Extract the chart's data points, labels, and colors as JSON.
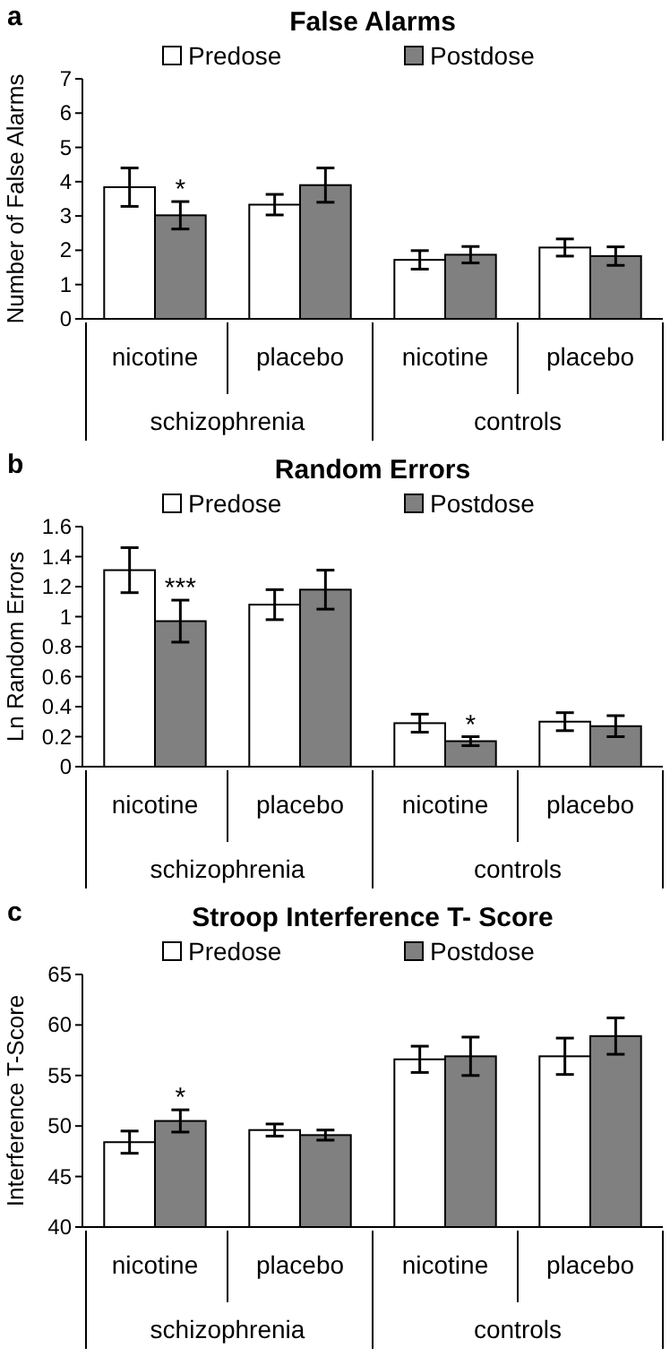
{
  "chart_data": [
    {
      "type": "bar",
      "title": "False Alarms",
      "ylabel": "Number of False Alarms",
      "categories": [
        "nicotine",
        "placebo",
        "nicotine",
        "placebo"
      ],
      "ylim": [
        0,
        7
      ],
      "yticks": [
        0,
        1,
        2,
        3,
        4,
        5,
        6,
        7
      ],
      "legend": "top",
      "grid": false,
      "series": [
        {
          "name": "Predose",
          "color": "#ffffff",
          "values": [
            3.84,
            3.33,
            1.72,
            2.08
          ],
          "errors": [
            0.56,
            0.3,
            0.27,
            0.25
          ]
        },
        {
          "name": "Postdose",
          "color": "#808080",
          "values": [
            3.02,
            3.9,
            1.87,
            1.83
          ],
          "errors": [
            0.4,
            0.5,
            0.24,
            0.27
          ],
          "value_labels": [
            "*",
            null,
            null,
            null
          ]
        }
      ],
      "annotations": [
        "a",
        "schizophrenia",
        "controls"
      ]
    },
    {
      "type": "bar",
      "title": "Random Errors",
      "ylabel": "Ln Random Errors",
      "categories": [
        "nicotine",
        "placebo",
        "nicotine",
        "placebo"
      ],
      "ylim": [
        0,
        1.6
      ],
      "yticks": [
        0,
        0.2,
        0.4,
        0.6,
        0.8,
        1,
        1.2,
        1.4,
        1.6
      ],
      "legend": "top",
      "grid": false,
      "series": [
        {
          "name": "Predose",
          "color": "#ffffff",
          "values": [
            1.31,
            1.08,
            0.29,
            0.3
          ],
          "errors": [
            0.15,
            0.1,
            0.06,
            0.06
          ]
        },
        {
          "name": "Postdose",
          "color": "#808080",
          "values": [
            0.97,
            1.18,
            0.17,
            0.27
          ],
          "errors": [
            0.14,
            0.13,
            0.03,
            0.07
          ],
          "value_labels": [
            "***",
            null,
            "*",
            null
          ]
        }
      ],
      "annotations": [
        "b",
        "schizophrenia",
        "controls"
      ]
    },
    {
      "type": "bar",
      "title": "Stroop Interference T- Score",
      "ylabel": "Interference T-Score",
      "categories": [
        "nicotine",
        "placebo",
        "nicotine",
        "placebo"
      ],
      "ylim": [
        40,
        65
      ],
      "yticks": [
        40,
        45,
        50,
        55,
        60,
        65
      ],
      "legend": "top",
      "grid": false,
      "series": [
        {
          "name": "Predose",
          "color": "#ffffff",
          "values": [
            48.4,
            49.6,
            56.6,
            56.9
          ],
          "errors": [
            1.1,
            0.6,
            1.3,
            1.8
          ]
        },
        {
          "name": "Postdose",
          "color": "#808080",
          "values": [
            50.5,
            49.1,
            56.9,
            58.9
          ],
          "errors": [
            1.1,
            0.5,
            1.9,
            1.8
          ],
          "value_labels": [
            "*",
            null,
            null,
            null
          ]
        }
      ],
      "annotations": [
        "c",
        "schizophrenia",
        "controls"
      ]
    }
  ]
}
